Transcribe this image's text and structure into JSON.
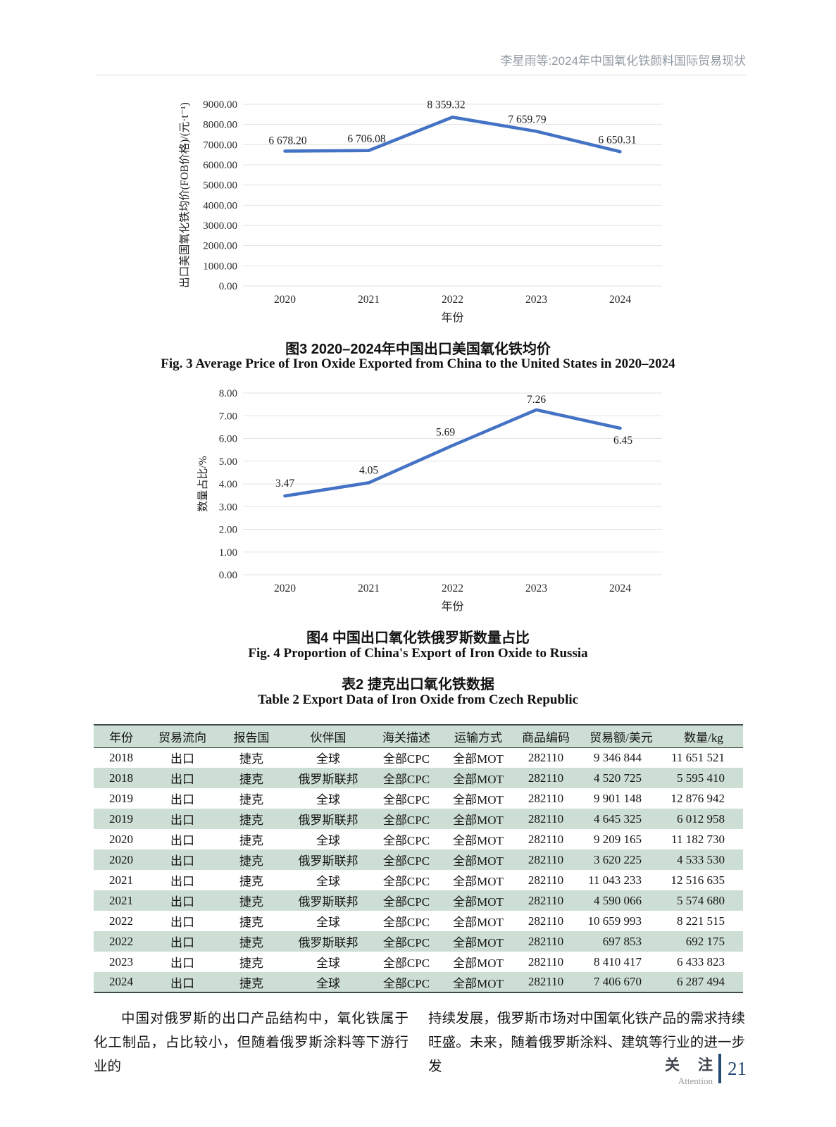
{
  "header": {
    "title": "李星雨等:2024年中国氧化铁颜料国际贸易现状"
  },
  "figure3": {
    "caption_zh": "图3  2020–2024年中国出口美国氧化铁均价",
    "caption_en": "Fig. 3  Average Price of Iron Oxide Exported from China to the United States in 2020–2024"
  },
  "figure4": {
    "caption_zh": "图4  中国出口氧化铁俄罗斯数量占比",
    "caption_en": "Fig. 4  Proportion of China's Export of Iron Oxide to Russia"
  },
  "table2": {
    "caption_zh": "表2  捷克出口氧化铁数据",
    "caption_en": "Table 2  Export Data of Iron Oxide from Czech Republic",
    "headers": [
      "年份",
      "贸易流向",
      "报告国",
      "伙伴国",
      "海关描述",
      "运输方式",
      "商品编码",
      "贸易额/美元",
      "数量/kg"
    ],
    "rows": [
      [
        "2018",
        "出口",
        "捷克",
        "全球",
        "全部CPC",
        "全部MOT",
        "282110",
        "9 346 844",
        "11 651 521"
      ],
      [
        "2018",
        "出口",
        "捷克",
        "俄罗斯联邦",
        "全部CPC",
        "全部MOT",
        "282110",
        "4 520 725",
        "5 595 410"
      ],
      [
        "2019",
        "出口",
        "捷克",
        "全球",
        "全部CPC",
        "全部MOT",
        "282110",
        "9 901 148",
        "12 876 942"
      ],
      [
        "2019",
        "出口",
        "捷克",
        "俄罗斯联邦",
        "全部CPC",
        "全部MOT",
        "282110",
        "4 645 325",
        "6 012 958"
      ],
      [
        "2020",
        "出口",
        "捷克",
        "全球",
        "全部CPC",
        "全部MOT",
        "282110",
        "9 209 165",
        "11 182 730"
      ],
      [
        "2020",
        "出口",
        "捷克",
        "俄罗斯联邦",
        "全部CPC",
        "全部MOT",
        "282110",
        "3 620 225",
        "4 533 530"
      ],
      [
        "2021",
        "出口",
        "捷克",
        "全球",
        "全部CPC",
        "全部MOT",
        "282110",
        "11 043 233",
        "12 516 635"
      ],
      [
        "2021",
        "出口",
        "捷克",
        "俄罗斯联邦",
        "全部CPC",
        "全部MOT",
        "282110",
        "4 590 066",
        "5 574 680"
      ],
      [
        "2022",
        "出口",
        "捷克",
        "全球",
        "全部CPC",
        "全部MOT",
        "282110",
        "10 659 993",
        "8 221 515"
      ],
      [
        "2022",
        "出口",
        "捷克",
        "俄罗斯联邦",
        "全部CPC",
        "全部MOT",
        "282110",
        "697 853",
        "692 175"
      ],
      [
        "2023",
        "出口",
        "捷克",
        "全球",
        "全部CPC",
        "全部MOT",
        "282110",
        "8 410 417",
        "6 433 823"
      ],
      [
        "2024",
        "出口",
        "捷克",
        "全球",
        "全部CPC",
        "全部MOT",
        "282110",
        "7 406 670",
        "6 287 494"
      ]
    ]
  },
  "body": {
    "left": "中国对俄罗斯的出口产品结构中，氧化铁属于化工制品，占比较小，但随着俄罗斯涂料等下游行业的",
    "right": "持续发展，俄罗斯市场对中国氧化铁产品的需求持续旺盛。未来，随着俄罗斯涂料、建筑等行业的进一步发"
  },
  "footer": {
    "section_zh": "关注",
    "section_en": "Attention",
    "page_number": "21"
  },
  "chart_data": [
    {
      "type": "line",
      "title": "图3 2020–2024年中国出口美国氧化铁均价",
      "categories": [
        "2020",
        "2021",
        "2022",
        "2023",
        "2024"
      ],
      "values": [
        6678.2,
        6706.08,
        8359.32,
        7659.79,
        6650.31
      ],
      "point_labels": [
        "6 678.20",
        "6 706.08",
        "8 359.32",
        "7 659.79",
        "6 650.31"
      ],
      "xlabel": "年份",
      "ylabel": "出口美国氧化铁均价(FOB价格)/(元·t⁻¹)",
      "ylim": [
        0,
        9000
      ],
      "ytick_step": 1000,
      "grid": true,
      "legend": "none",
      "line_color": "#4472C4",
      "label_dx": [
        4,
        -3,
        -9,
        -13,
        -4
      ],
      "label_dy": [
        -10,
        -12,
        -13,
        -12,
        -12
      ]
    },
    {
      "type": "line",
      "title": "图4 中国出口氧化铁俄罗斯数量占比",
      "categories": [
        "2020",
        "2021",
        "2022",
        "2023",
        "2024"
      ],
      "values": [
        3.47,
        4.05,
        5.69,
        7.26,
        6.45
      ],
      "point_labels": [
        "3.47",
        "4.05",
        "5.69",
        "7.26",
        "6.45"
      ],
      "xlabel": "年份",
      "ylabel": "数量占比/%",
      "ylim": [
        0,
        8
      ],
      "ytick_step": 1,
      "grid": true,
      "legend": "none",
      "line_color": "#4472C4",
      "label_dx": [
        0,
        0,
        -10,
        0,
        4
      ],
      "label_dy": [
        -13,
        -13,
        -14,
        -10,
        22
      ]
    }
  ]
}
